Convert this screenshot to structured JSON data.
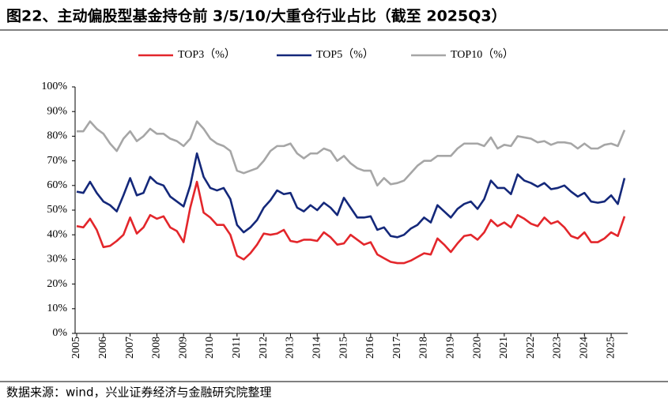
{
  "chart_data": {
    "type": "line",
    "title": "图22、主动偏股型基金持仓前 3/5/10/大重仓行业占比（截至 2025Q3）",
    "source": "数据来源：wind，兴业证券经济与金融研究院整理",
    "categories": [
      "2005",
      null,
      null,
      null,
      "2006",
      null,
      null,
      null,
      "2007",
      null,
      null,
      null,
      "2008",
      null,
      null,
      null,
      "2009",
      null,
      null,
      null,
      "2010",
      null,
      null,
      null,
      "2011",
      null,
      null,
      null,
      "2012",
      null,
      null,
      null,
      "2013",
      null,
      null,
      null,
      "2014",
      null,
      null,
      null,
      "2015",
      null,
      null,
      null,
      "2016",
      null,
      null,
      null,
      "2017",
      null,
      null,
      null,
      "2018",
      null,
      null,
      null,
      "2019",
      null,
      null,
      null,
      "2020",
      null,
      null,
      null,
      "2021",
      null,
      null,
      null,
      "2022",
      null,
      null,
      null,
      "2023",
      null,
      null,
      null,
      "2024",
      null,
      null,
      null,
      "2025",
      null,
      null
    ],
    "series": [
      {
        "name": "TOP3（%）",
        "color": "#e3262b",
        "values": [
          43.5,
          43,
          46.5,
          42,
          35,
          35.5,
          37.5,
          40,
          47,
          40.5,
          43,
          48,
          46.5,
          47.5,
          43,
          41.5,
          37,
          51,
          61.5,
          49,
          47,
          44,
          44,
          40,
          31.5,
          30,
          32.5,
          36,
          40.5,
          40,
          40.5,
          42,
          37.5,
          37,
          38,
          38,
          37.5,
          41,
          39,
          36,
          36.5,
          40,
          38,
          36,
          37,
          32,
          30.5,
          29,
          28.5,
          28.5,
          29.5,
          31,
          32.5,
          32,
          38.5,
          36,
          33,
          36.5,
          39.5,
          40,
          38,
          41,
          46,
          43.5,
          45,
          43,
          48,
          46.5,
          44.5,
          43.5,
          47,
          44.5,
          45.5,
          43,
          39.5,
          38.5,
          41,
          37,
          37,
          38.5,
          41,
          39.5,
          47.5
        ]
      },
      {
        "name": "TOP5（%）",
        "color": "#14287a",
        "values": [
          57.5,
          57,
          61.5,
          57,
          53.5,
          52,
          49.5,
          56,
          63,
          56,
          57,
          63.5,
          61,
          60,
          55.5,
          53.5,
          51.5,
          60,
          73,
          63.5,
          59,
          58,
          59,
          54.5,
          44,
          41,
          43,
          46,
          51,
          54,
          58,
          56.5,
          57,
          51,
          49.5,
          52,
          50,
          53,
          51,
          48,
          55,
          51,
          47,
          47,
          47.5,
          42,
          43,
          39.5,
          39,
          40,
          42.5,
          44,
          47,
          45,
          52,
          49.5,
          47,
          50.5,
          52.5,
          53.5,
          50.5,
          54.5,
          62,
          59,
          59,
          56.5,
          64.5,
          62,
          61,
          59.5,
          61,
          58.5,
          59,
          60,
          57.5,
          55.5,
          57,
          53.5,
          53,
          53.5,
          56,
          52.5,
          63
        ]
      },
      {
        "name": "TOP10（%）",
        "color": "#a6a6a6",
        "values": [
          82,
          82,
          86,
          83,
          81,
          77,
          74,
          79,
          82,
          78,
          80,
          83,
          81,
          81,
          79,
          78,
          76,
          79,
          86,
          83,
          79,
          77,
          76,
          74,
          66,
          65,
          66,
          67,
          70,
          74,
          76,
          76,
          77,
          73,
          71,
          73,
          73,
          75,
          74,
          70,
          72,
          69,
          67,
          66,
          66,
          60,
          63,
          60.5,
          61,
          62,
          65,
          68,
          70,
          70,
          72,
          72,
          72,
          75,
          77,
          77,
          77,
          76,
          79.5,
          75,
          76.5,
          76,
          80,
          79.5,
          79,
          77.5,
          78,
          76.5,
          77.5,
          77.5,
          77,
          75,
          77,
          75,
          75,
          76.5,
          77,
          76,
          82.5
        ]
      }
    ],
    "ylim": [
      0,
      100
    ],
    "yticks": [
      {
        "value": 0,
        "label": "0%"
      },
      {
        "value": 10,
        "label": "10%"
      },
      {
        "value": 20,
        "label": "20%"
      },
      {
        "value": 30,
        "label": "30%"
      },
      {
        "value": 40,
        "label": "40%"
      },
      {
        "value": 50,
        "label": "50%"
      },
      {
        "value": 60,
        "label": "60%"
      },
      {
        "value": 70,
        "label": "70%"
      },
      {
        "value": 80,
        "label": "80%"
      },
      {
        "value": 90,
        "label": "90%"
      },
      {
        "value": 100,
        "label": "100%"
      }
    ],
    "grid": false
  }
}
